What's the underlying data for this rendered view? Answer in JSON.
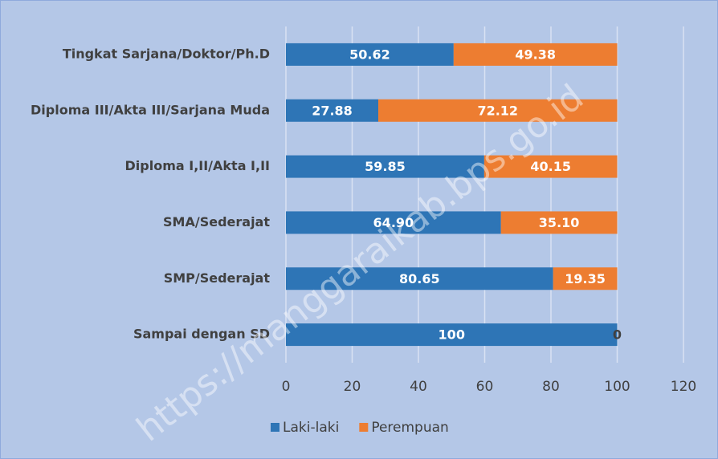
{
  "chart_data": {
    "type": "stacked-bar-horizontal",
    "categories": [
      "Tingkat Sarjana/Doktor/Ph.D",
      "Diploma III/Akta III/Sarjana Muda",
      "Diploma I,II/Akta I,II",
      "SMA/Sederajat",
      "SMP/Sederajat",
      "Sampai dengan SD"
    ],
    "series": [
      {
        "name": "Laki-laki",
        "color": "#2e75b6",
        "values": [
          50.62,
          27.88,
          59.85,
          64.9,
          80.65,
          100
        ],
        "value_labels": [
          "50.62",
          "27.88",
          "59.85",
          "64.90",
          "80.65",
          "100"
        ]
      },
      {
        "name": "Perempuan",
        "color": "#ed7d31",
        "values": [
          49.38,
          72.12,
          40.15,
          35.1,
          19.35,
          0
        ],
        "value_labels": [
          "49.38",
          "72.12",
          "40.15",
          "35.10",
          "19.35",
          "0"
        ]
      }
    ],
    "xlim": [
      0,
      120
    ],
    "xticks": [
      0,
      20,
      40,
      60,
      80,
      100,
      120
    ],
    "grid": true,
    "legend": "bottom",
    "watermark": "https://manggaraikab.bps.go.id"
  }
}
